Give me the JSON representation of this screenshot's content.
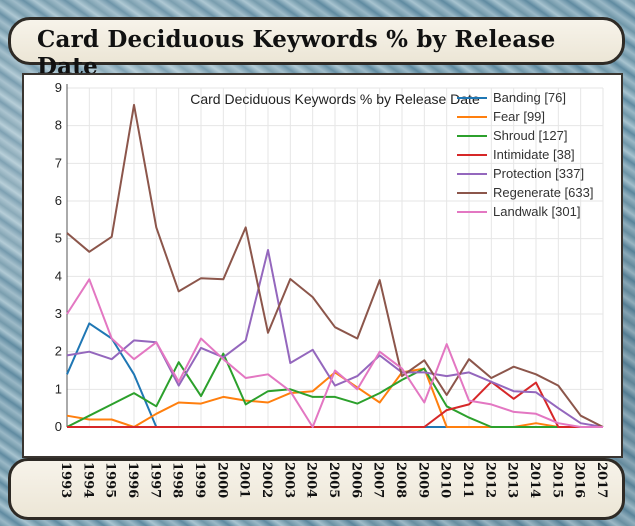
{
  "header": {
    "title": "Card Deciduous Keywords % by Release Date"
  },
  "chart_data": {
    "type": "line",
    "title": "Card Deciduous Keywords % by Release Date",
    "xlabel": "",
    "ylabel": "",
    "ylim": [
      0,
      9
    ],
    "yticks": [
      0,
      1,
      2,
      3,
      4,
      5,
      6,
      7,
      8,
      9
    ],
    "x": [
      "1993",
      "1994",
      "1995",
      "1996",
      "1997",
      "1998",
      "1999",
      "2000",
      "2001",
      "2002",
      "2003",
      "2004",
      "2005",
      "2006",
      "2007",
      "2008",
      "2009",
      "2010",
      "2011",
      "2012",
      "2013",
      "2014",
      "2015",
      "2016",
      "2017"
    ],
    "series": [
      {
        "name": "Banding [76]",
        "color": "#1f77b4",
        "values": [
          1.4,
          2.75,
          2.35,
          1.4,
          0,
          0,
          0,
          0,
          0,
          0,
          0,
          0,
          0,
          0,
          0,
          0,
          0,
          0,
          0,
          0,
          0,
          0,
          0,
          0,
          0
        ]
      },
      {
        "name": "Fear [99]",
        "color": "#ff7f0e",
        "values": [
          0.3,
          0.2,
          0.2,
          0,
          0.35,
          0.65,
          0.62,
          0.8,
          0.7,
          0.65,
          0.9,
          0.95,
          1.45,
          1.05,
          0.65,
          1.45,
          1.55,
          0,
          0,
          0,
          0,
          0.1,
          0,
          0,
          0
        ]
      },
      {
        "name": "Shroud [127]",
        "color": "#2ca02c",
        "values": [
          0,
          0.3,
          0.6,
          0.9,
          0.55,
          1.72,
          0.82,
          1.95,
          0.6,
          0.95,
          1.0,
          0.8,
          0.8,
          0.62,
          0.9,
          1.25,
          1.55,
          0.55,
          0.25,
          0,
          0,
          0,
          0,
          0,
          0
        ]
      },
      {
        "name": "Intimidate [38]",
        "color": "#d62728",
        "values": [
          0,
          0,
          0,
          0,
          0,
          0,
          0,
          0,
          0,
          0,
          0,
          0,
          0,
          0,
          0,
          0,
          0,
          0.45,
          0.6,
          1.2,
          0.75,
          1.18,
          0,
          0,
          0
        ]
      },
      {
        "name": "Protection [337]",
        "color": "#9467bd",
        "values": [
          1.9,
          2.0,
          1.8,
          2.3,
          2.25,
          1.1,
          2.1,
          1.85,
          2.3,
          4.7,
          1.7,
          2.05,
          1.1,
          1.35,
          1.9,
          1.45,
          1.45,
          1.35,
          1.45,
          1.2,
          0.95,
          0.92,
          0.5,
          0.1,
          0
        ]
      },
      {
        "name": "Regenerate [633]",
        "color": "#8c564b",
        "values": [
          5.15,
          4.65,
          5.05,
          8.55,
          5.3,
          3.6,
          3.95,
          3.92,
          5.3,
          2.5,
          3.93,
          3.45,
          2.65,
          2.35,
          3.9,
          1.35,
          1.77,
          0.85,
          1.8,
          1.3,
          1.6,
          1.4,
          1.1,
          0.3,
          0
        ]
      },
      {
        "name": "Landwalk [301]",
        "color": "#e377c2",
        "values": [
          3.0,
          3.92,
          2.35,
          1.8,
          2.25,
          1.2,
          2.35,
          1.8,
          1.3,
          1.4,
          0.95,
          0,
          1.5,
          1.0,
          2.0,
          1.55,
          0.65,
          2.2,
          0.7,
          0.6,
          0.4,
          0.35,
          0.1,
          0,
          0
        ]
      }
    ]
  }
}
